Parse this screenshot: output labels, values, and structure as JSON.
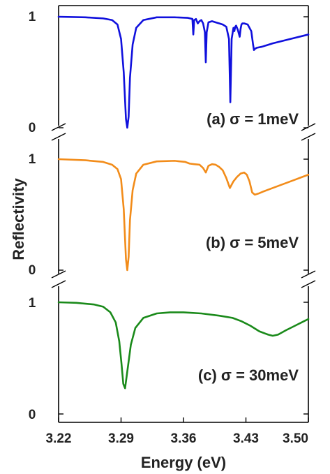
{
  "chart_data": {
    "type": "line",
    "xlabel": "Energy (eV)",
    "ylabel": "Reflectivity",
    "xlim": [
      3.22,
      3.5
    ],
    "x_ticks": [
      "3.22",
      "3.29",
      "3.36",
      "3.43",
      "3.50"
    ],
    "panels": [
      {
        "label": "(a) σ = 1meV",
        "color": "#1010dd",
        "ylim": [
          0,
          1
        ],
        "y_ticks": [
          "0",
          "1"
        ],
        "x": [
          3.22,
          3.25,
          3.27,
          3.28,
          3.286,
          3.29,
          3.293,
          3.2955,
          3.297,
          3.2985,
          3.3,
          3.303,
          3.307,
          3.315,
          3.33,
          3.35,
          3.365,
          3.37,
          3.371,
          3.372,
          3.374,
          3.376,
          3.378,
          3.38,
          3.382,
          3.384,
          3.385,
          3.386,
          3.388,
          3.392,
          3.396,
          3.4,
          3.404,
          3.408,
          3.411,
          3.4125,
          3.414,
          3.416,
          3.417,
          3.418,
          3.419,
          3.421,
          3.423,
          3.424,
          3.425,
          3.426,
          3.428,
          3.432,
          3.436,
          3.438,
          3.439,
          3.44,
          3.442,
          3.448,
          3.46,
          3.48,
          3.5
        ],
        "y": [
          1.0,
          0.995,
          0.985,
          0.97,
          0.93,
          0.8,
          0.5,
          0.08,
          0.0,
          0.1,
          0.45,
          0.75,
          0.9,
          0.97,
          0.995,
          0.995,
          0.99,
          0.98,
          0.84,
          0.97,
          0.98,
          0.94,
          0.96,
          0.97,
          0.94,
          0.86,
          0.59,
          0.86,
          0.95,
          0.96,
          0.95,
          0.94,
          0.93,
          0.91,
          0.8,
          0.23,
          0.8,
          0.9,
          0.87,
          0.91,
          0.92,
          0.88,
          0.82,
          0.89,
          0.93,
          0.94,
          0.94,
          0.93,
          0.87,
          0.75,
          0.7,
          0.71,
          0.72,
          0.73,
          0.76,
          0.8,
          0.84
        ]
      },
      {
        "label": "(b) σ = 5meV",
        "color": "#f28c1a",
        "ylim": [
          0,
          1
        ],
        "y_ticks": [
          "0",
          "1"
        ],
        "x": [
          3.22,
          3.25,
          3.27,
          3.28,
          3.286,
          3.29,
          3.293,
          3.2955,
          3.297,
          3.2985,
          3.3,
          3.303,
          3.307,
          3.315,
          3.33,
          3.35,
          3.362,
          3.367,
          3.372,
          3.378,
          3.382,
          3.385,
          3.388,
          3.392,
          3.396,
          3.4,
          3.404,
          3.408,
          3.412,
          3.416,
          3.42,
          3.424,
          3.428,
          3.431,
          3.434,
          3.437,
          3.44,
          3.444,
          3.45,
          3.46,
          3.47,
          3.48,
          3.49,
          3.5
        ],
        "y": [
          1.0,
          0.99,
          0.975,
          0.95,
          0.91,
          0.82,
          0.55,
          0.1,
          0.0,
          0.12,
          0.45,
          0.72,
          0.87,
          0.95,
          0.98,
          0.985,
          0.975,
          0.96,
          0.955,
          0.95,
          0.92,
          0.88,
          0.94,
          0.955,
          0.95,
          0.93,
          0.9,
          0.83,
          0.74,
          0.8,
          0.84,
          0.87,
          0.88,
          0.86,
          0.8,
          0.7,
          0.68,
          0.69,
          0.71,
          0.74,
          0.77,
          0.8,
          0.83,
          0.86
        ]
      },
      {
        "label": "(c) σ = 30meV",
        "color": "#1a8a1a",
        "ylim": [
          0,
          1
        ],
        "y_ticks": [
          "0",
          "1"
        ],
        "x": [
          3.22,
          3.24,
          3.26,
          3.27,
          3.278,
          3.284,
          3.288,
          3.2905,
          3.2925,
          3.2945,
          3.297,
          3.301,
          3.306,
          3.315,
          3.33,
          3.345,
          3.36,
          3.38,
          3.4,
          3.415,
          3.425,
          3.435,
          3.445,
          3.455,
          3.46,
          3.466,
          3.475,
          3.485,
          3.495,
          3.5
        ],
        "y": [
          1.0,
          0.995,
          0.98,
          0.96,
          0.91,
          0.82,
          0.65,
          0.45,
          0.27,
          0.23,
          0.38,
          0.62,
          0.77,
          0.86,
          0.9,
          0.91,
          0.91,
          0.9,
          0.88,
          0.86,
          0.83,
          0.79,
          0.74,
          0.71,
          0.7,
          0.71,
          0.75,
          0.79,
          0.83,
          0.85
        ]
      }
    ]
  }
}
